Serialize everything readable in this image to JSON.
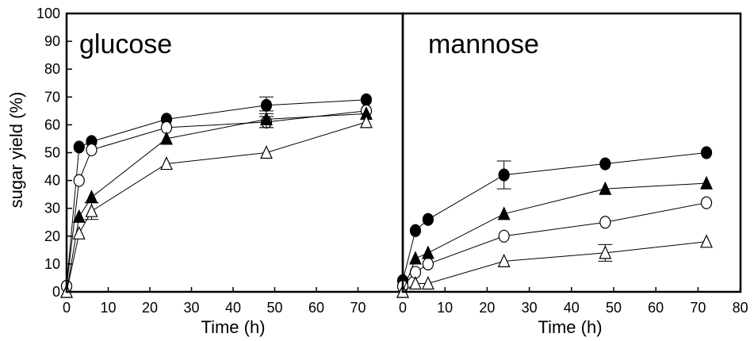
{
  "ylabel": "sugar yield (%)",
  "chart_data": [
    {
      "type": "scatter",
      "title": "glucose",
      "xlabel": "Time (h)",
      "ylabel": "sugar yield (%)",
      "xlim": [
        0,
        75
      ],
      "ylim": [
        0,
        100
      ],
      "xticks": [
        0,
        10,
        20,
        30,
        40,
        50,
        60,
        70
      ],
      "yticks": [
        0,
        10,
        20,
        30,
        40,
        50,
        60,
        70,
        80,
        90,
        100
      ],
      "grid": false,
      "series": [
        {
          "marker": "filled-circle",
          "points": [
            [
              0,
              2
            ],
            [
              3,
              52
            ],
            [
              6,
              54
            ],
            [
              24,
              62
            ],
            [
              48,
              67
            ],
            [
              72,
              69
            ]
          ],
          "errors": [
            0,
            0,
            0,
            0,
            3,
            0
          ]
        },
        {
          "marker": "open-circle",
          "points": [
            [
              0,
              2
            ],
            [
              3,
              40
            ],
            [
              6,
              51
            ],
            [
              24,
              59
            ],
            [
              48,
              61
            ],
            [
              72,
              65
            ]
          ],
          "errors": [
            0,
            0,
            0,
            0,
            2,
            0
          ]
        },
        {
          "marker": "filled-triangle",
          "points": [
            [
              0,
              0
            ],
            [
              3,
              27
            ],
            [
              6,
              34
            ],
            [
              24,
              55
            ],
            [
              48,
              62
            ],
            [
              72,
              64
            ]
          ],
          "errors": [
            0,
            0,
            0,
            0,
            3,
            0
          ]
        },
        {
          "marker": "open-triangle",
          "points": [
            [
              0,
              0
            ],
            [
              3,
              21
            ],
            [
              6,
              29
            ],
            [
              24,
              46
            ],
            [
              48,
              50
            ],
            [
              72,
              61
            ]
          ],
          "errors": [
            0,
            0,
            3,
            0,
            0,
            0
          ]
        }
      ]
    },
    {
      "type": "scatter",
      "title": "mannose",
      "xlabel": "Time (h)",
      "xlim": [
        0,
        80
      ],
      "ylim": [
        0,
        100
      ],
      "xticks": [
        0,
        10,
        20,
        30,
        40,
        50,
        60,
        70,
        80
      ],
      "grid": false,
      "series": [
        {
          "marker": "filled-circle",
          "points": [
            [
              0,
              4
            ],
            [
              3,
              22
            ],
            [
              6,
              26
            ],
            [
              24,
              42
            ],
            [
              48,
              46
            ],
            [
              72,
              50
            ]
          ],
          "errors": [
            0,
            0,
            0,
            5,
            0,
            0
          ]
        },
        {
          "marker": "open-circle",
          "points": [
            [
              0,
              2
            ],
            [
              3,
              7
            ],
            [
              6,
              10
            ],
            [
              24,
              20
            ],
            [
              48,
              25
            ],
            [
              72,
              32
            ]
          ],
          "errors": [
            0,
            0,
            0,
            0,
            0,
            0
          ]
        },
        {
          "marker": "filled-triangle",
          "points": [
            [
              0,
              0
            ],
            [
              3,
              12
            ],
            [
              6,
              14
            ],
            [
              24,
              28
            ],
            [
              48,
              37
            ],
            [
              72,
              39
            ]
          ],
          "errors": [
            0,
            0,
            0,
            0,
            0,
            0
          ]
        },
        {
          "marker": "open-triangle",
          "points": [
            [
              0,
              0
            ],
            [
              3,
              3
            ],
            [
              6,
              3
            ],
            [
              24,
              11
            ],
            [
              48,
              14
            ],
            [
              72,
              18
            ]
          ],
          "errors": [
            0,
            0,
            0,
            0,
            3,
            0
          ]
        }
      ]
    }
  ]
}
